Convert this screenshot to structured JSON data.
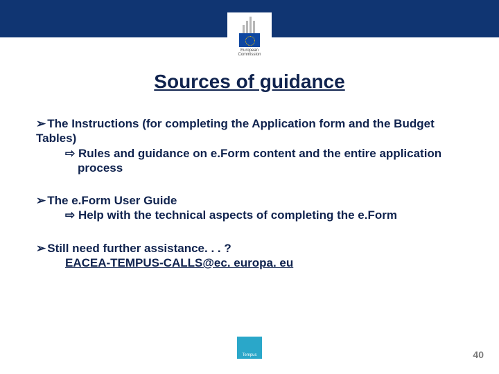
{
  "header": {
    "band_color": "#103572",
    "logo_top_text": "European",
    "logo_bottom_text": "Commission"
  },
  "title": "Sources of guidance",
  "blocks": [
    {
      "lead": "The Instructions (for completing the Application form and the Budget Tables)",
      "sub": "Rules and guidance on e.Form content and the entire application process"
    },
    {
      "lead": "The e.Form User Guide",
      "sub": "Help with the technical aspects of completing the e.Form"
    },
    {
      "lead": "Still need further assistance. . . ?",
      "email": "EACEA-TEMPUS-CALLS@ec. europa. eu"
    }
  ],
  "footer": {
    "logo_label": "Tempus",
    "page_number": "40"
  },
  "colors": {
    "text": "#10234e",
    "page_num": "#7a7a7a",
    "footer_logo_bg": "#2aa7c9"
  }
}
